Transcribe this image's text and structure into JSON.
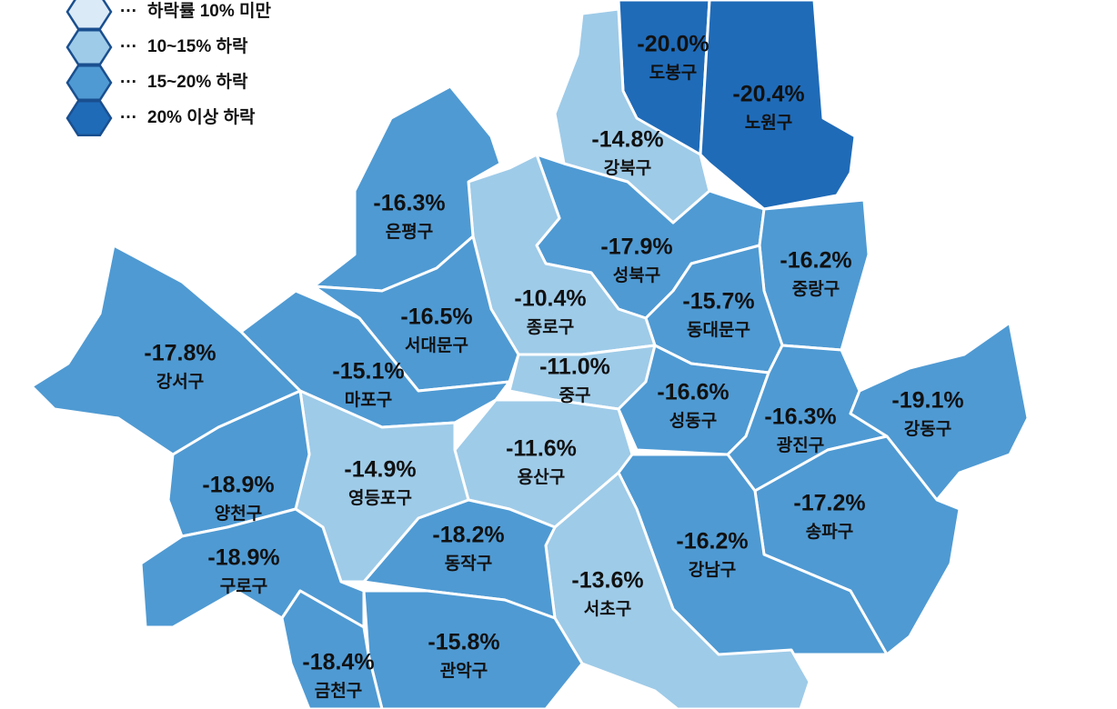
{
  "legend": {
    "items": [
      {
        "label": "하락률 10% 미만",
        "separator": "···",
        "color": "#dbeaf7"
      },
      {
        "label": "10~15% 하락",
        "separator": "···",
        "color": "#9ecbe8"
      },
      {
        "label": "15~20% 하락",
        "separator": "···",
        "color": "#4f9ad3"
      },
      {
        "label": "20% 이상 하락",
        "separator": "···",
        "color": "#1f6bb8"
      }
    ]
  },
  "districts": {
    "names": [
      "도봉구",
      "노원구",
      "강북구",
      "성북구",
      "중랑구",
      "동대문구",
      "종로구",
      "은평구",
      "서대문구",
      "마포구",
      "중구",
      "용산구",
      "성동구",
      "광진구",
      "강동구",
      "송파구",
      "강남구",
      "서초구",
      "동작구",
      "관악구",
      "영등포구",
      "양천구",
      "구로구",
      "금천구",
      "강서구"
    ],
    "values": [
      -20.0,
      -20.4,
      -14.8,
      -17.9,
      -16.2,
      -15.7,
      -10.4,
      -16.3,
      -16.5,
      -15.1,
      -11.0,
      -11.6,
      -16.6,
      -16.3,
      -19.1,
      -17.2,
      -16.2,
      -13.6,
      -18.2,
      -15.8,
      -14.9,
      -18.9,
      -18.9,
      -18.4,
      -17.8
    ],
    "value_labels": [
      "-20.0%",
      "-20.4%",
      "-14.8%",
      "-17.9%",
      "-16.2%",
      "-15.7%",
      "-10.4%",
      "-16.3%",
      "-16.5%",
      "-15.1%",
      "-11.0%",
      "-11.6%",
      "-16.6%",
      "-16.3%",
      "-19.1%",
      "-17.2%",
      "-16.2%",
      "-13.6%",
      "-18.2%",
      "-15.8%",
      "-14.9%",
      "-18.9%",
      "-18.9%",
      "-18.4%",
      "-17.8%"
    ],
    "colors": [
      "#1f6bb8",
      "#1f6bb8",
      "#9ecbe8",
      "#4f9ad3",
      "#4f9ad3",
      "#4f9ad3",
      "#9ecbe8",
      "#4f9ad3",
      "#4f9ad3",
      "#4f9ad3",
      "#9ecbe8",
      "#9ecbe8",
      "#4f9ad3",
      "#4f9ad3",
      "#4f9ad3",
      "#4f9ad3",
      "#4f9ad3",
      "#9ecbe8",
      "#4f9ad3",
      "#4f9ad3",
      "#9ecbe8",
      "#4f9ad3",
      "#4f9ad3",
      "#4f9ad3",
      "#4f9ad3"
    ]
  }
}
